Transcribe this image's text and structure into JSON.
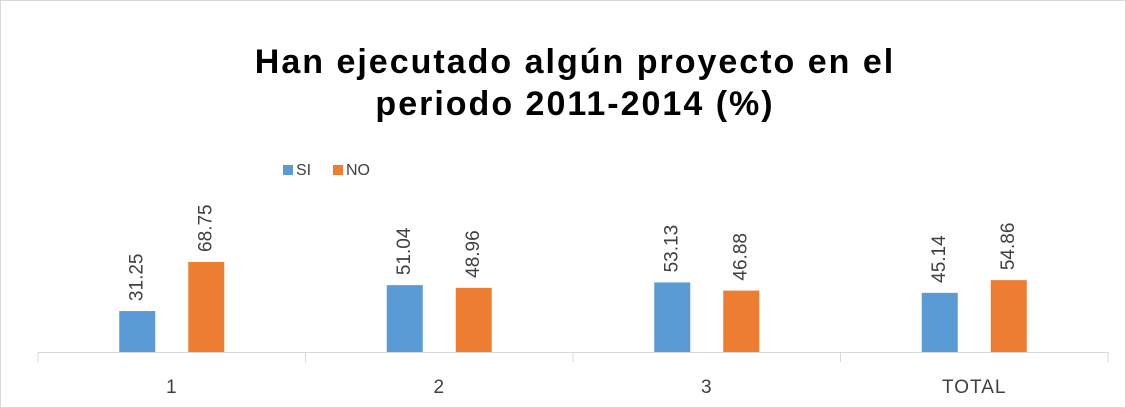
{
  "chart_data": {
    "type": "bar",
    "title": [
      "Han ejecutado algún proyecto en el",
      "periodo 2011-2014 (%)"
    ],
    "categories": [
      "1",
      "2",
      "3",
      "TOTAL"
    ],
    "series": [
      {
        "name": "SI",
        "color": "#5b9bd5",
        "values": [
          31.25,
          51.04,
          53.13,
          45.14
        ]
      },
      {
        "name": "NO",
        "color": "#ed7d31",
        "values": [
          68.75,
          48.96,
          46.88,
          54.86
        ]
      }
    ]
  }
}
